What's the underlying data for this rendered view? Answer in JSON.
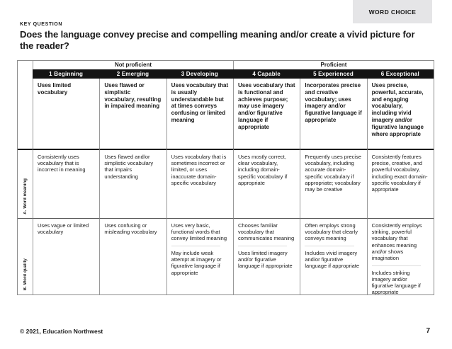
{
  "page": {
    "tab": "WORD CHOICE",
    "key_question_label": "KEY QUESTION",
    "title": "Does the language convey precise and compelling meaning and/or create a vivid picture for the reader?",
    "footer": {
      "copyright": "© 2021, Education Northwest",
      "page_number": "7"
    }
  },
  "colors": {
    "tab_bg": "#e5e5e7",
    "level_bar_bg": "#141414",
    "level_bar_text": "#ffffff",
    "table_border": "#999999",
    "thick_divider": "#1a1a1a",
    "paragraph_separator": "#dcdcdc"
  },
  "rubric": {
    "band_headers": [
      "Not proficient",
      "Proficient"
    ],
    "levels": [
      "1 Beginning",
      "2 Emerging",
      "3 Developing",
      "4 Capable",
      "5 Experienced",
      "6 Exceptional"
    ],
    "descriptors": [
      "Uses limited vocabulary",
      "Uses flawed or simplistic vocabulary, resulting in impaired meaning",
      "Uses vocabulary that is usually understandable but at times conveys confusing or limited meaning",
      "Uses vocabulary that is functional and achieves purpose; may use imagery and/or figurative language if appropriate",
      "Incorporates precise and creative vocabulary; uses imagery and/or figurative language if appropriate",
      "Uses precise, powerful, accurate, and engaging vocabulary, including vivid imagery and/or figurative language where appropriate"
    ],
    "rows": [
      {
        "label": "A. Word meaning",
        "cells": [
          [
            "Consistently uses vocabulary that is incorrect in meaning"
          ],
          [
            "Uses flawed and/or simplistic vocabulary that impairs understanding"
          ],
          [
            "Uses vocabulary that is sometimes incorrect or limited, or uses inaccurate domain-specific vocabulary"
          ],
          [
            "Uses mostly correct, clear vocabulary, including domain-specific vocabulary if appropriate"
          ],
          [
            "Frequently uses precise vocabulary, including accurate domain-specific vocabulary if appropriate; vocabulary may be creative"
          ],
          [
            "Consistently features precise, creative, and powerful vocabulary, including exact domain-specific vocabulary if appropriate"
          ]
        ]
      },
      {
        "label": "B. Word quality",
        "cells": [
          [
            "Uses vague or limited vocabulary"
          ],
          [
            "Uses confusing or misleading vocabulary"
          ],
          [
            "Uses very basic, functional words that convey limited meaning",
            "May include weak attempt at imagery or figurative language if appropriate"
          ],
          [
            "Chooses familiar vocabulary that communicates meaning",
            "Uses limited imagery and/or figurative language if appropriate"
          ],
          [
            "Often employs strong vocabulary that clearly conveys meaning",
            "Includes vivid imagery and/or figurative language if appropriate"
          ],
          [
            "Consistently employs striking, powerful vocabulary that enhances meaning and/or shows imagination",
            "Includes striking imagery and/or figurative language if appropriate"
          ]
        ]
      }
    ]
  }
}
